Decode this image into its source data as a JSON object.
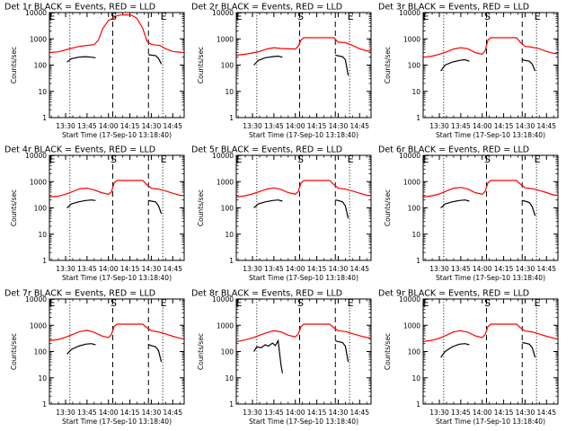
{
  "chart_data": {
    "type": "line",
    "layout": "3x3 grid",
    "x_tick_labels": [
      "13:30",
      "13:45",
      "14:00",
      "14:15",
      "14:30",
      "14:45"
    ],
    "y_tick_labels": [
      "1",
      "10",
      "100",
      "1000",
      "10000"
    ],
    "xlabel": "Start Time (17-Sep-10 13:18:40)",
    "ylabel": "Counts/sec",
    "xlim": [
      "13:18:40",
      "14:53"
    ],
    "ylim": [
      1,
      10000
    ],
    "y_scale": "log",
    "series_colors": {
      "events": "#000000",
      "lld": "#ff0000"
    },
    "dotted_lines": [
      "13:33",
      "14:38"
    ],
    "dashed_lines": [
      "14:03",
      "14:28"
    ],
    "marker_S": "S",
    "marker_E": "E",
    "panels": [
      {
        "title": "Det 1r BLACK = Events, RED = LLD",
        "series": [
          {
            "name": "Events",
            "color": "#000000",
            "x": [
              "13:31",
              "13:34",
              "13:39",
              "13:44",
              "13:48",
              "13:51"
            ],
            "y": [
              130,
              175,
              200,
              210,
              200,
              190
            ]
          },
          {
            "name": "Events",
            "color": "#000000",
            "x": [
              "14:28",
              "14:30",
              "14:33",
              "14:35",
              "14:37"
            ],
            "y": [
              250,
              240,
              230,
              180,
              110
            ]
          },
          {
            "name": "LLD",
            "color": "#ff0000",
            "x": [
              "13:19",
              "13:25",
              "13:30",
              "13:35",
              "13:40",
              "13:45",
              "13:50",
              "13:53",
              "13:56",
              "14:00",
              "14:03",
              "14:05",
              "14:08",
              "14:12",
              "14:16",
              "14:20",
              "14:24",
              "14:27",
              "14:30",
              "14:33",
              "14:36",
              "14:40",
              "14:45",
              "14:50",
              "14:53"
            ],
            "y": [
              300,
              320,
              380,
              450,
              520,
              560,
              600,
              900,
              2500,
              5000,
              6000,
              7200,
              8000,
              8200,
              8000,
              6000,
              2500,
              800,
              620,
              580,
              560,
              420,
              330,
              310,
              300
            ]
          }
        ]
      },
      {
        "title": "Det 2r BLACK = Events, RED = LLD",
        "series": [
          {
            "name": "Events",
            "color": "#000000",
            "x": [
              "13:31",
              "13:34",
              "13:39",
              "13:44",
              "13:48",
              "13:51"
            ],
            "y": [
              100,
              150,
              190,
              210,
              220,
              200
            ]
          },
          {
            "name": "Events",
            "color": "#000000",
            "x": [
              "14:28",
              "14:31",
              "14:33",
              "14:35",
              "14:37"
            ],
            "y": [
              240,
              220,
              210,
              160,
              40
            ]
          },
          {
            "name": "LLD",
            "color": "#ff0000",
            "x": [
              "13:19",
              "13:25",
              "13:30",
              "13:35",
              "13:40",
              "13:45",
              "13:50",
              "14:00",
              "14:02",
              "14:04",
              "14:06",
              "14:10",
              "14:14",
              "14:16",
              "14:20",
              "14:24",
              "14:27",
              "14:30",
              "14:35",
              "14:40",
              "14:45",
              "14:50",
              "14:53"
            ],
            "y": [
              240,
              260,
              290,
              330,
              410,
              460,
              430,
              410,
              520,
              900,
              1100,
              1100,
              1100,
              1100,
              1100,
              1100,
              1100,
              750,
              720,
              560,
              420,
              350,
              340
            ]
          }
        ]
      },
      {
        "title": "Det 3r BLACK = Events, RED = LLD",
        "series": [
          {
            "name": "Events",
            "color": "#000000",
            "x": [
              "13:31",
              "13:34",
              "13:39",
              "13:44",
              "13:48",
              "13:51"
            ],
            "y": [
              60,
              100,
              130,
              150,
              160,
              140
            ]
          },
          {
            "name": "Events",
            "color": "#000000",
            "x": [
              "14:28",
              "14:30",
              "14:33",
              "14:35",
              "14:37"
            ],
            "y": [
              160,
              150,
              140,
              110,
              60
            ]
          },
          {
            "name": "LLD",
            "color": "#ff0000",
            "x": [
              "13:19",
              "13:25",
              "13:30",
              "13:35",
              "13:40",
              "13:45",
              "13:50",
              "13:55",
              "14:00",
              "14:02",
              "14:04",
              "14:06",
              "14:10",
              "14:14",
              "14:20",
              "14:24",
              "14:27",
              "14:30",
              "14:35",
              "14:40",
              "14:45",
              "14:50",
              "14:53"
            ],
            "y": [
              200,
              220,
              260,
              320,
              410,
              460,
              420,
              300,
              260,
              350,
              900,
              1100,
              1100,
              1100,
              1100,
              1100,
              700,
              520,
              480,
              420,
              330,
              280,
              270
            ]
          }
        ]
      },
      {
        "title": "Det 4r BLACK = Events, RED = LLD",
        "series": [
          {
            "name": "Events",
            "color": "#000000",
            "x": [
              "13:31",
              "13:34",
              "13:39",
              "13:44",
              "13:48",
              "13:51"
            ],
            "y": [
              100,
              140,
              170,
              190,
              200,
              190
            ]
          },
          {
            "name": "Events",
            "color": "#000000",
            "x": [
              "14:28",
              "14:30",
              "14:33",
              "14:35",
              "14:37"
            ],
            "y": [
              190,
              180,
              170,
              120,
              60
            ]
          },
          {
            "name": "LLD",
            "color": "#ff0000",
            "x": [
              "13:19",
              "13:25",
              "13:30",
              "13:35",
              "13:40",
              "13:45",
              "13:50",
              "13:55",
              "14:00",
              "14:02",
              "14:04",
              "14:06",
              "14:10",
              "14:14",
              "14:20",
              "14:24",
              "14:27",
              "14:30",
              "14:35",
              "14:40",
              "14:45",
              "14:50",
              "14:53"
            ],
            "y": [
              260,
              280,
              330,
              420,
              540,
              560,
              480,
              380,
              330,
              400,
              900,
              1100,
              1100,
              1100,
              1100,
              1100,
              750,
              560,
              520,
              440,
              360,
              300,
              290
            ]
          }
        ]
      },
      {
        "title": "Det 5r BLACK = Events, RED = LLD",
        "series": [
          {
            "name": "Events",
            "color": "#000000",
            "x": [
              "13:31",
              "13:34",
              "13:39",
              "13:44",
              "13:48",
              "13:51"
            ],
            "y": [
              100,
              140,
              170,
              190,
              200,
              180
            ]
          },
          {
            "name": "Events",
            "color": "#000000",
            "x": [
              "14:28",
              "14:30",
              "14:33",
              "14:35",
              "14:37"
            ],
            "y": [
              200,
              190,
              170,
              120,
              40
            ]
          },
          {
            "name": "LLD",
            "color": "#ff0000",
            "x": [
              "13:19",
              "13:25",
              "13:30",
              "13:35",
              "13:40",
              "13:45",
              "13:50",
              "13:55",
              "14:00",
              "14:02",
              "14:04",
              "14:06",
              "14:10",
              "14:14",
              "14:20",
              "14:24",
              "14:27",
              "14:30",
              "14:35",
              "14:40",
              "14:45",
              "14:50",
              "14:53"
            ],
            "y": [
              260,
              290,
              340,
              420,
              520,
              580,
              500,
              380,
              330,
              420,
              900,
              1100,
              1100,
              1100,
              1100,
              1100,
              760,
              560,
              520,
              440,
              360,
              300,
              290
            ]
          }
        ]
      },
      {
        "title": "Det 6r BLACK = Events, RED = LLD",
        "series": [
          {
            "name": "Events",
            "color": "#000000",
            "x": [
              "13:31",
              "13:34",
              "13:39",
              "13:44",
              "13:48",
              "13:51"
            ],
            "y": [
              100,
              140,
              170,
              190,
              200,
              180
            ]
          },
          {
            "name": "Events",
            "color": "#000000",
            "x": [
              "14:28",
              "14:30",
              "14:33",
              "14:35",
              "14:37"
            ],
            "y": [
              190,
              180,
              160,
              110,
              50
            ]
          },
          {
            "name": "LLD",
            "color": "#ff0000",
            "x": [
              "13:19",
              "13:25",
              "13:30",
              "13:35",
              "13:40",
              "13:45",
              "13:50",
              "13:55",
              "14:00",
              "14:02",
              "14:04",
              "14:06",
              "14:10",
              "14:14",
              "14:20",
              "14:24",
              "14:27",
              "14:30",
              "14:35",
              "14:40",
              "14:45",
              "14:50",
              "14:53"
            ],
            "y": [
              260,
              290,
              340,
              440,
              560,
              600,
              520,
              380,
              330,
              420,
              900,
              1100,
              1100,
              1100,
              1100,
              1100,
              780,
              580,
              540,
              460,
              380,
              310,
              300
            ]
          }
        ]
      },
      {
        "title": "Det 7r BLACK = Events, RED = LLD",
        "series": [
          {
            "name": "Events",
            "color": "#000000",
            "x": [
              "13:31",
              "13:34",
              "13:39",
              "13:44",
              "13:48",
              "13:51"
            ],
            "y": [
              80,
              120,
              160,
              190,
              200,
              180
            ]
          },
          {
            "name": "Events",
            "color": "#000000",
            "x": [
              "14:28",
              "14:30",
              "14:33",
              "14:35",
              "14:37"
            ],
            "y": [
              180,
              170,
              150,
              110,
              40
            ]
          },
          {
            "name": "LLD",
            "color": "#ff0000",
            "x": [
              "13:19",
              "13:25",
              "13:30",
              "13:35",
              "13:40",
              "13:45",
              "13:50",
              "13:55",
              "14:00",
              "14:02",
              "14:04",
              "14:06",
              "14:10",
              "14:14",
              "14:20",
              "14:24",
              "14:27",
              "14:30",
              "14:35",
              "14:40",
              "14:45",
              "14:50",
              "14:53"
            ],
            "y": [
              260,
              290,
              350,
              450,
              580,
              640,
              540,
              400,
              340,
              440,
              900,
              1100,
              1100,
              1100,
              1100,
              1100,
              800,
              620,
              560,
              470,
              380,
              320,
              300
            ]
          }
        ]
      },
      {
        "title": "Det 8r BLACK = Events, RED = LLD",
        "series": [
          {
            "name": "Events",
            "color": "#000000",
            "x": [
              "13:31",
              "13:33",
              "13:36",
              "13:39",
              "13:41",
              "13:44",
              "13:46",
              "13:48",
              "13:50",
              "13:51"
            ],
            "y": [
              100,
              150,
              140,
              180,
              160,
              210,
              170,
              260,
              30,
              15
            ]
          },
          {
            "name": "Events",
            "color": "#000000",
            "x": [
              "14:28",
              "14:30",
              "14:33",
              "14:35",
              "14:37"
            ],
            "y": [
              260,
              240,
              220,
              160,
              40
            ]
          },
          {
            "name": "LLD",
            "color": "#ff0000",
            "x": [
              "13:19",
              "13:25",
              "13:30",
              "13:35",
              "13:40",
              "13:45",
              "13:50",
              "13:55",
              "14:00",
              "14:02",
              "14:04",
              "14:06",
              "14:10",
              "14:14",
              "14:20",
              "14:24",
              "14:27",
              "14:30",
              "14:35",
              "14:40",
              "14:45",
              "14:50",
              "14:53"
            ],
            "y": [
              240,
              280,
              330,
              420,
              520,
              620,
              560,
              420,
              360,
              460,
              900,
              1100,
              1100,
              1100,
              1100,
              1100,
              800,
              620,
              580,
              480,
              400,
              340,
              330
            ]
          }
        ]
      },
      {
        "title": "Det 9r BLACK = Events, RED = LLD",
        "series": [
          {
            "name": "Events",
            "color": "#000000",
            "x": [
              "13:31",
              "13:34",
              "13:39",
              "13:44",
              "13:48",
              "13:51"
            ],
            "y": [
              60,
              100,
              150,
              190,
              200,
              180
            ]
          },
          {
            "name": "Events",
            "color": "#000000",
            "x": [
              "14:28",
              "14:30",
              "14:33",
              "14:35",
              "14:37"
            ],
            "y": [
              220,
              210,
              190,
              140,
              60
            ]
          },
          {
            "name": "LLD",
            "color": "#ff0000",
            "x": [
              "13:19",
              "13:25",
              "13:30",
              "13:35",
              "13:40",
              "13:45",
              "13:50",
              "13:55",
              "14:00",
              "14:02",
              "14:04",
              "14:06",
              "14:10",
              "14:14",
              "14:20",
              "14:24",
              "14:27",
              "14:30",
              "14:35",
              "14:40",
              "14:45",
              "14:50",
              "14:53"
            ],
            "y": [
              240,
              270,
              320,
              420,
              560,
              620,
              540,
              400,
              340,
              440,
              900,
              1100,
              1100,
              1100,
              1100,
              1100,
              780,
              600,
              560,
              460,
              380,
              320,
              300
            ]
          }
        ]
      }
    ]
  }
}
